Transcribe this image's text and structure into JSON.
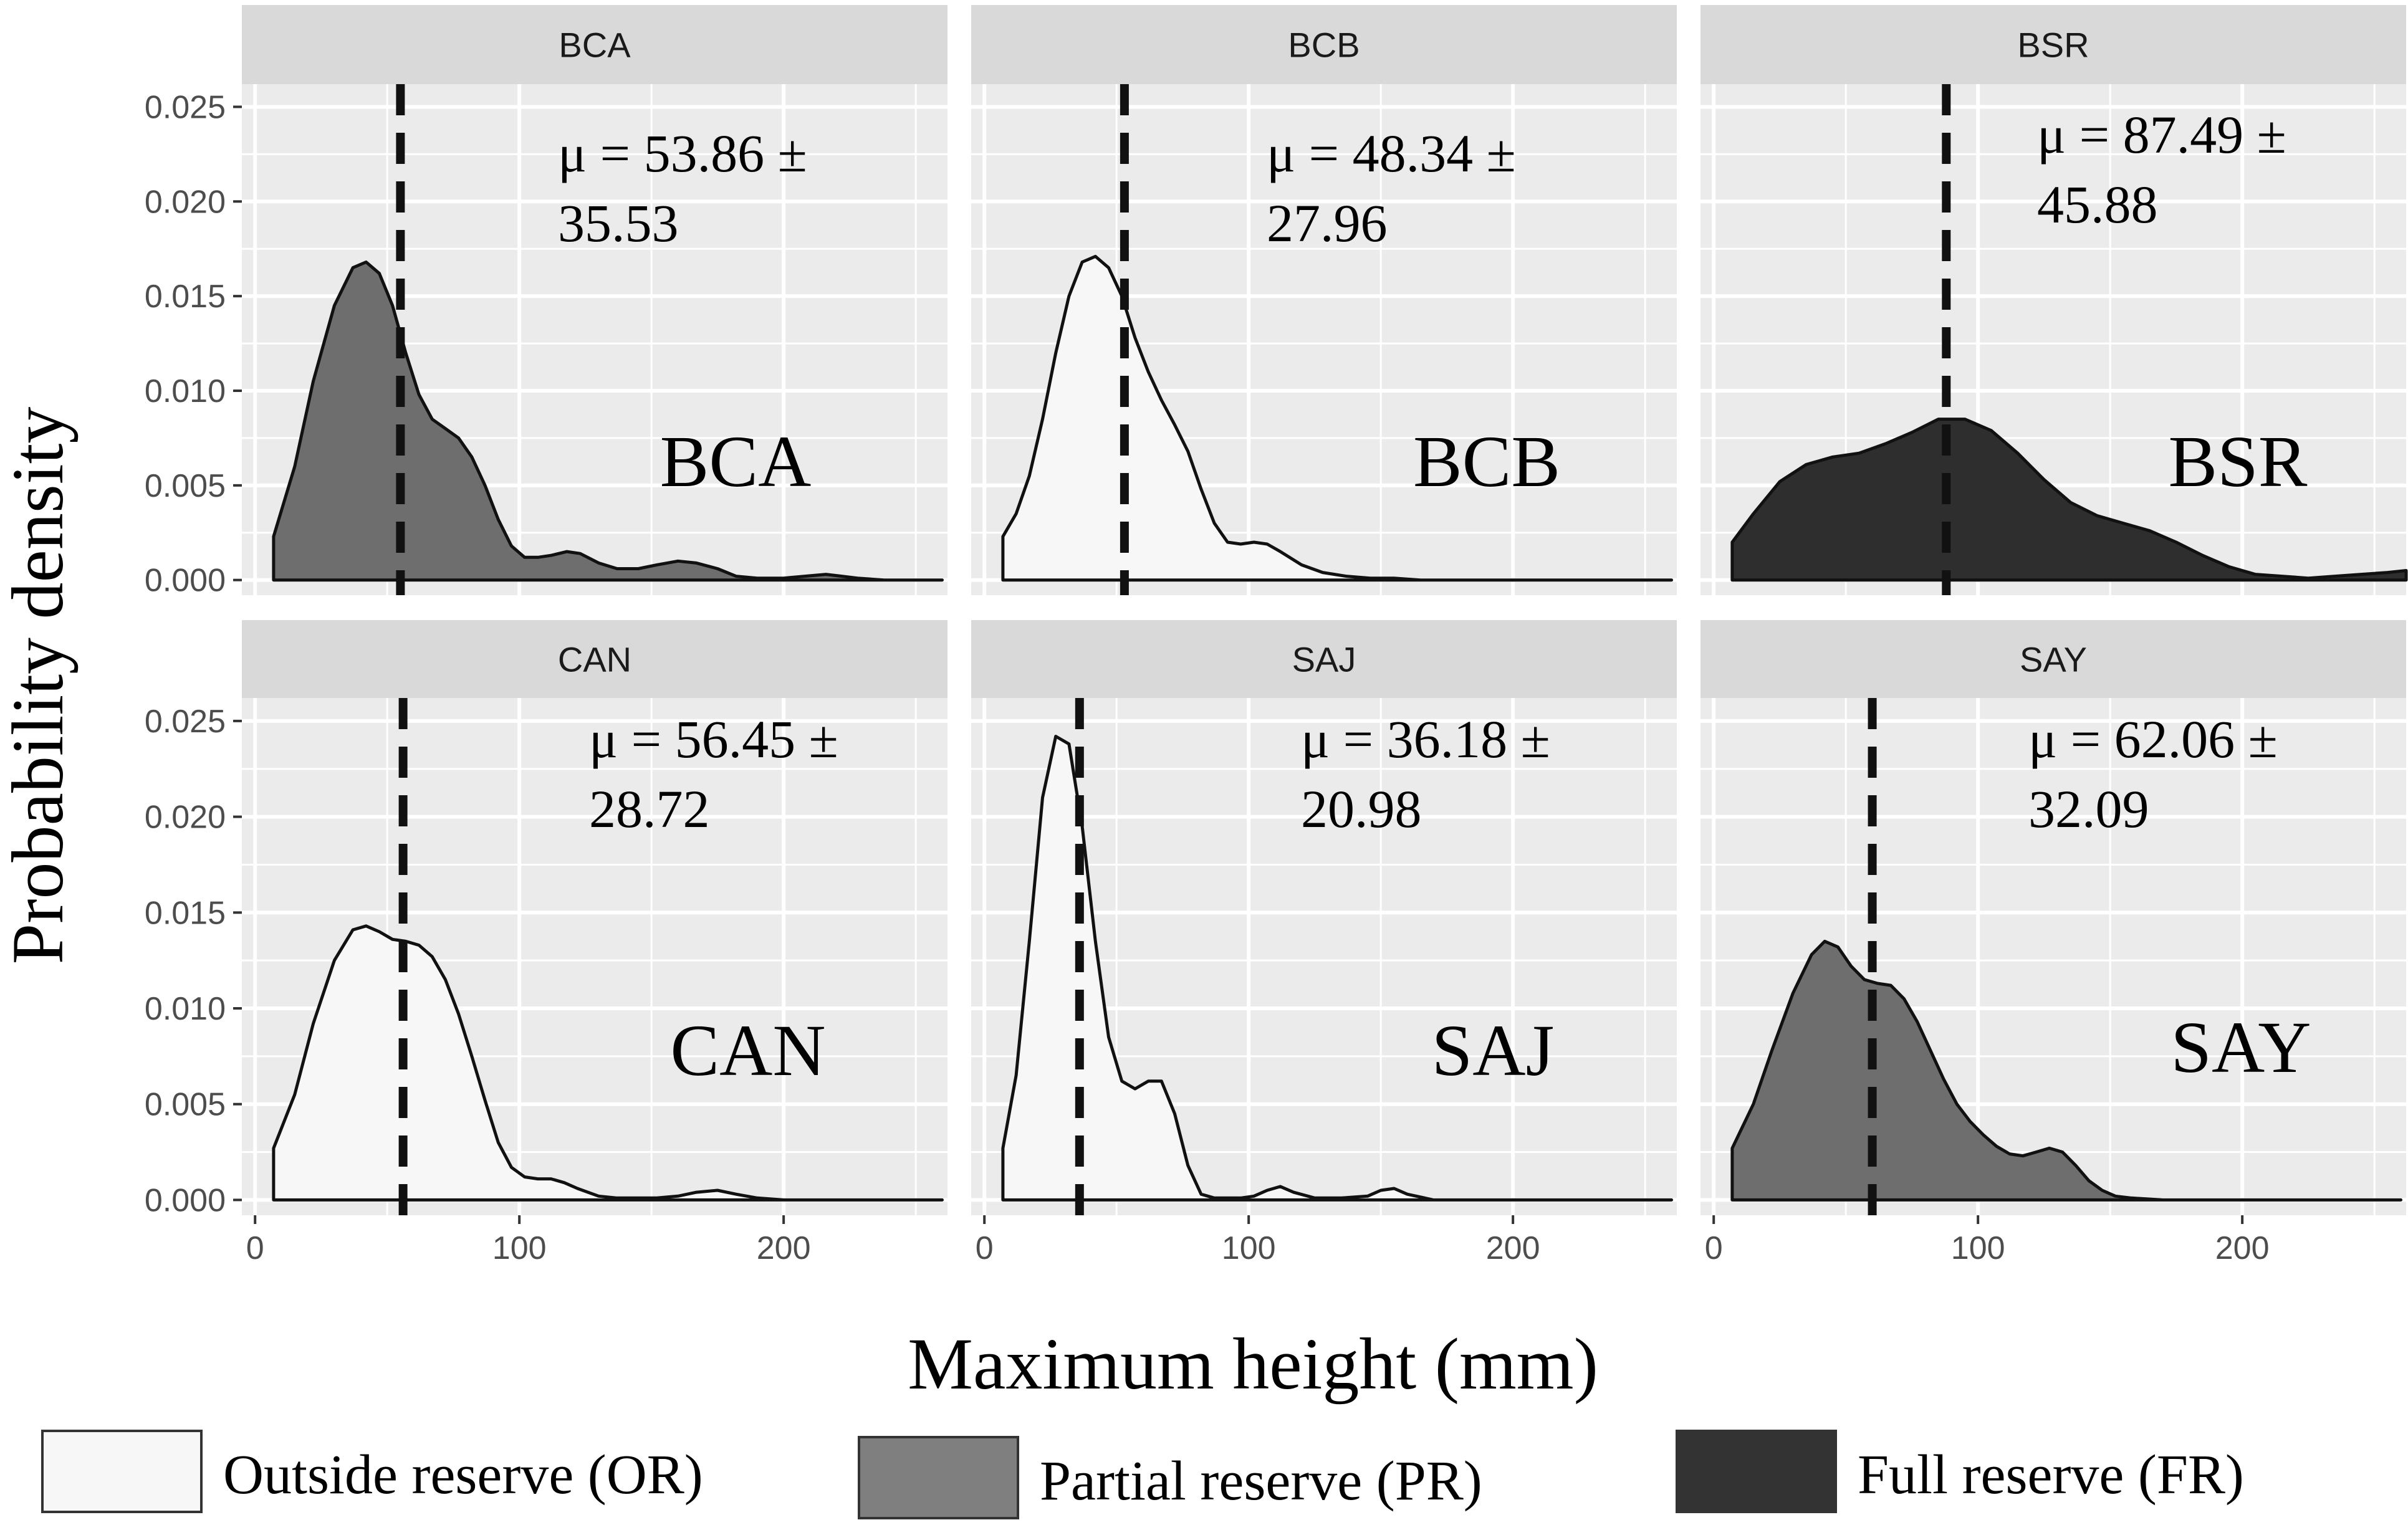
{
  "chart_data": {
    "type": "area",
    "title": "",
    "xlabel": "Maximum height (mm)",
    "ylabel": "Probability density",
    "xlim": [
      -5,
      262
    ],
    "ylim": [
      -0.0008,
      0.0262
    ],
    "x_ticks": [
      0,
      100,
      200
    ],
    "x_tick_labels": [
      "0",
      "100",
      "200"
    ],
    "y_ticks": [
      0,
      0.005,
      0.01,
      0.015,
      0.02,
      0.025
    ],
    "y_tick_labels": [
      "0.000",
      "0.005",
      "0.010",
      "0.015",
      "0.020",
      "0.025"
    ],
    "grid": true,
    "legend": [
      {
        "label": "Outside reserve (OR)",
        "fill": "#f7f7f7"
      },
      {
        "label": "Partial reserve (PR)",
        "fill": "#7f7f7f"
      },
      {
        "label": "Full reserve (FR)",
        "fill": "#333333"
      }
    ],
    "panels": [
      {
        "strip": "BCA",
        "label": "BCA",
        "group": "Partial reserve (PR)",
        "fill": "#6e6e6e",
        "mean_line": 55,
        "mu_line1": "μ  = 53.86 ±",
        "mu_line2": "35.53",
        "x": [
          7,
          15,
          22,
          30,
          37,
          42,
          47,
          52,
          57,
          62,
          67,
          72,
          77,
          82,
          87,
          92,
          97,
          102,
          107,
          112,
          118,
          123,
          130,
          137,
          145,
          152,
          160,
          167,
          175,
          182,
          190,
          200,
          208,
          216,
          222,
          228,
          238,
          260
        ],
        "density": [
          0.0023,
          0.006,
          0.0105,
          0.0145,
          0.0165,
          0.0168,
          0.0162,
          0.0145,
          0.012,
          0.0098,
          0.0085,
          0.008,
          0.0075,
          0.0065,
          0.005,
          0.0032,
          0.0018,
          0.0012,
          0.0012,
          0.0013,
          0.0015,
          0.0014,
          0.0009,
          0.0006,
          0.0006,
          0.0008,
          0.001,
          0.0009,
          0.0006,
          0.0002,
          0.0001,
          0.0001,
          0.0002,
          0.0003,
          0.0002,
          0.0001,
          0.0,
          0.0
        ]
      },
      {
        "strip": "BCB",
        "label": "BCB",
        "group": "Outside reserve (OR)",
        "fill": "#f7f7f7",
        "mean_line": 53,
        "mu_line1": "μ  = 48.34 ±",
        "mu_line2": "27.96",
        "x": [
          7,
          12,
          17,
          22,
          27,
          32,
          37,
          42,
          47,
          52,
          57,
          62,
          67,
          72,
          77,
          82,
          87,
          92,
          97,
          102,
          107,
          112,
          120,
          128,
          137,
          146,
          155,
          165,
          260
        ],
        "density": [
          0.0023,
          0.0035,
          0.0055,
          0.0085,
          0.012,
          0.015,
          0.0168,
          0.0171,
          0.0165,
          0.015,
          0.0128,
          0.011,
          0.0095,
          0.0082,
          0.0068,
          0.0048,
          0.003,
          0.002,
          0.0019,
          0.002,
          0.0019,
          0.0015,
          0.0008,
          0.0004,
          0.0002,
          0.0001,
          0.0001,
          0.0,
          0.0
        ]
      },
      {
        "strip": "BSR",
        "label": "BSR",
        "group": "Full reserve (FR)",
        "fill": "#2e2e2e",
        "mean_line": 88,
        "mu_line1": "μ  = 87.49 ±",
        "mu_line2": "45.88",
        "x": [
          7,
          15,
          25,
          35,
          45,
          55,
          65,
          75,
          85,
          95,
          105,
          115,
          125,
          135,
          145,
          155,
          165,
          175,
          185,
          195,
          205,
          215,
          225,
          235,
          245,
          255,
          262
        ],
        "density": [
          0.002,
          0.0035,
          0.0052,
          0.0061,
          0.0065,
          0.0067,
          0.0072,
          0.0078,
          0.0085,
          0.0085,
          0.0079,
          0.0067,
          0.0053,
          0.0041,
          0.0034,
          0.003,
          0.0026,
          0.002,
          0.0013,
          0.0007,
          0.0003,
          0.0002,
          0.0001,
          0.0002,
          0.0003,
          0.0004,
          0.0005
        ]
      },
      {
        "strip": "CAN",
        "label": "CAN",
        "group": "Outside reserve (OR)",
        "fill": "#f7f7f7",
        "mean_line": 56,
        "mu_line1": "μ  = 56.45 ±",
        "mu_line2": "28.72",
        "x": [
          7,
          15,
          22,
          30,
          37,
          42,
          47,
          52,
          57,
          62,
          67,
          72,
          77,
          82,
          87,
          92,
          97,
          102,
          107,
          112,
          117,
          122,
          130,
          137,
          145,
          152,
          160,
          167,
          175,
          182,
          190,
          200,
          260
        ],
        "density": [
          0.0027,
          0.0055,
          0.0092,
          0.0125,
          0.0141,
          0.0143,
          0.014,
          0.0136,
          0.0135,
          0.0133,
          0.0127,
          0.0115,
          0.0097,
          0.0075,
          0.0052,
          0.003,
          0.0017,
          0.0012,
          0.0011,
          0.0011,
          0.0009,
          0.0006,
          0.0002,
          0.0001,
          0.0001,
          0.0001,
          0.0002,
          0.0004,
          0.0005,
          0.0003,
          0.0001,
          0.0,
          0.0
        ]
      },
      {
        "strip": "SAJ",
        "label": "SAJ",
        "group": "Outside reserve (OR)",
        "fill": "#f7f7f7",
        "mean_line": 36,
        "mu_line1": "μ  = 36.18 ±",
        "mu_line2": "20.98",
        "x": [
          7,
          12,
          17,
          22,
          27,
          32,
          37,
          42,
          47,
          52,
          57,
          62,
          67,
          72,
          77,
          82,
          87,
          92,
          97,
          102,
          107,
          112,
          117,
          125,
          135,
          145,
          150,
          155,
          160,
          170,
          260
        ],
        "density": [
          0.0027,
          0.0065,
          0.0135,
          0.021,
          0.0242,
          0.0238,
          0.0195,
          0.0135,
          0.0085,
          0.0062,
          0.0058,
          0.0062,
          0.0062,
          0.0045,
          0.0018,
          0.0003,
          0.0001,
          0.0001,
          0.0001,
          0.0002,
          0.0005,
          0.0007,
          0.0004,
          0.0001,
          0.0001,
          0.0002,
          0.0005,
          0.0006,
          0.0003,
          0.0,
          0.0
        ]
      },
      {
        "strip": "SAY",
        "label": "SAY",
        "group": "Partial reserve (PR)",
        "fill": "#6e6e6e",
        "mean_line": 60,
        "mu_line1": "μ  = 62.06 ±",
        "mu_line2": "32.09",
        "x": [
          7,
          15,
          22,
          30,
          37,
          42,
          47,
          52,
          57,
          62,
          67,
          72,
          77,
          82,
          87,
          92,
          97,
          102,
          107,
          112,
          117,
          122,
          127,
          132,
          137,
          142,
          147,
          152,
          158,
          170,
          260
        ],
        "density": [
          0.0027,
          0.005,
          0.0078,
          0.0108,
          0.0128,
          0.0135,
          0.0132,
          0.0122,
          0.0115,
          0.0113,
          0.0112,
          0.0105,
          0.0093,
          0.0078,
          0.0063,
          0.005,
          0.0041,
          0.0034,
          0.0028,
          0.0024,
          0.0023,
          0.0025,
          0.0027,
          0.0025,
          0.0018,
          0.001,
          0.0005,
          0.0002,
          0.0001,
          0.0,
          0.0
        ]
      }
    ]
  }
}
